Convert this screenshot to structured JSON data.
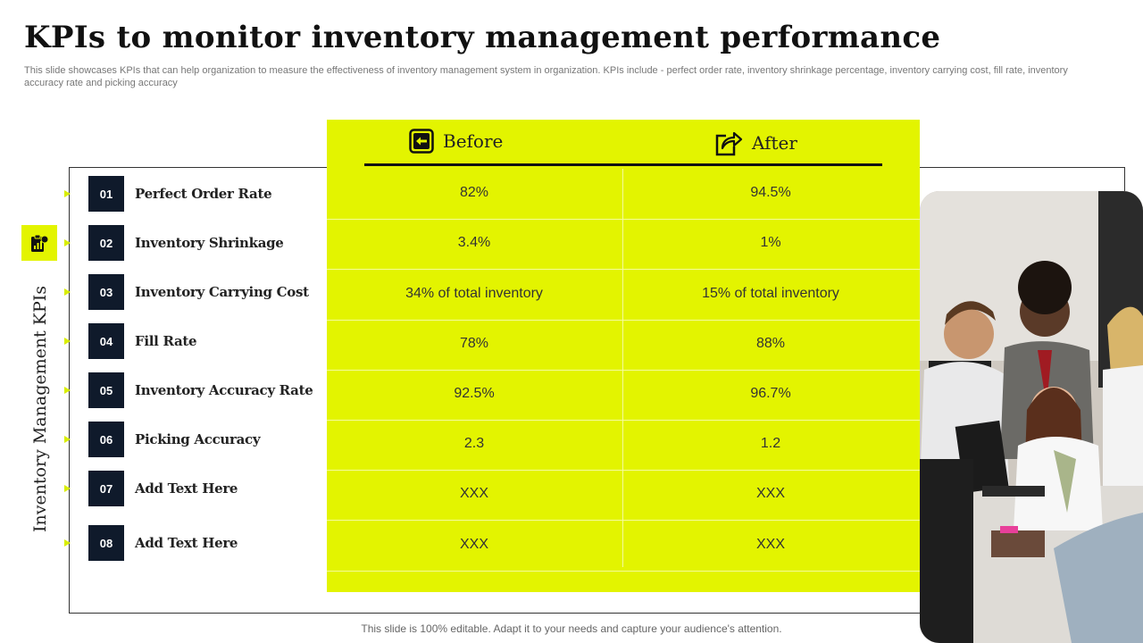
{
  "title": "KPIs to monitor inventory management performance",
  "subtitle": "This slide showcases KPIs that can help organization to measure the effectiveness of inventory management system in organization. KPIs include - perfect order rate, inventory shrinkage percentage, inventory carrying cost, fill rate, inventory accuracy rate and picking accuracy",
  "side_label": "Inventory Management KPIs",
  "side_icon": "clipboard-chart-icon",
  "headers": {
    "before": "Before",
    "after": "After"
  },
  "header_icons": {
    "before": "arrow-left-box-icon",
    "after": "share-arrow-icon"
  },
  "colors": {
    "accent": "#e3f400",
    "badge": "#0f1a2b"
  },
  "kpis": [
    {
      "num": "01",
      "name": "Perfect Order Rate",
      "before": "82%",
      "after": "94.5%"
    },
    {
      "num": "02",
      "name": "Inventory Shrinkage",
      "before": "3.4%",
      "after": "1%"
    },
    {
      "num": "03",
      "name": "Inventory Carrying Cost",
      "before": "34% of total inventory",
      "after": "15% of total inventory"
    },
    {
      "num": "04",
      "name": "Fill Rate",
      "before": "78%",
      "after": "88%"
    },
    {
      "num": "05",
      "name": "Inventory Accuracy Rate",
      "before": "92.5%",
      "after": "96.7%"
    },
    {
      "num": "06",
      "name": "Picking Accuracy",
      "before": "2.3",
      "after": "1.2"
    },
    {
      "num": "07",
      "name": "Add Text Here",
      "before": "XXX",
      "after": "XXX"
    },
    {
      "num": "08",
      "name": "Add Text Here",
      "before": "XXX",
      "after": "XXX"
    }
  ],
  "footer": "This slide is 100% editable. Adapt it to your needs and capture your audience's attention."
}
